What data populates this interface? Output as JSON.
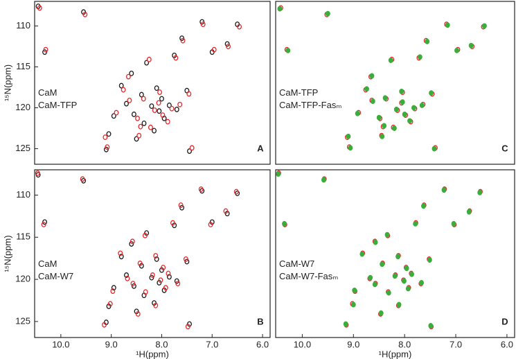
{
  "chart_data": [
    {
      "type": "scatter",
      "label": "A",
      "xlim": [
        10.52,
        5.85
      ],
      "ylim": [
        107.0,
        126.9
      ],
      "yticks": [
        110,
        115,
        120,
        125
      ],
      "ylabel": "¹⁵N(ppm)",
      "series": [
        {
          "name": "CaM",
          "color": "#1a1a1a",
          "x": [
            10.45,
            10.32,
            9.55,
            9.05,
            9.1,
            8.95,
            8.8,
            8.7,
            8.6,
            8.55,
            8.5,
            8.4,
            8.35,
            8.3,
            8.2,
            8.15,
            8.1,
            8.05,
            8.0,
            7.95,
            7.85,
            7.75,
            7.7,
            7.6,
            7.5,
            7.2,
            7.0,
            6.7,
            6.5,
            7.45
          ],
          "y": [
            107.6,
            113.2,
            108.3,
            123.2,
            125.1,
            121.0,
            117.3,
            119.5,
            115.8,
            120.8,
            123.8,
            118.4,
            121.9,
            114.5,
            119.8,
            122.8,
            117.6,
            120.4,
            118.9,
            121.3,
            119.7,
            113.6,
            120.2,
            111.5,
            117.9,
            109.5,
            113.2,
            112.2,
            109.8,
            125.3
          ]
        },
        {
          "name": "CaM-TFP",
          "color": "#e8262a",
          "x": [
            10.42,
            10.3,
            9.52,
            9.12,
            9.08,
            8.9,
            8.76,
            8.64,
            8.66,
            8.48,
            8.45,
            8.36,
            8.42,
            8.25,
            8.14,
            8.22,
            8.04,
            7.98,
            8.06,
            7.88,
            7.8,
            7.72,
            7.64,
            7.58,
            7.46,
            7.18,
            6.96,
            6.68,
            6.46,
            7.4
          ],
          "y": [
            107.8,
            112.9,
            108.6,
            123.6,
            124.8,
            120.6,
            117.8,
            119.1,
            116.2,
            121.3,
            123.4,
            118.9,
            122.3,
            114.1,
            120.3,
            122.4,
            118.1,
            120.9,
            119.4,
            121.7,
            120.1,
            113.9,
            119.6,
            111.8,
            118.3,
            109.8,
            112.9,
            112.5,
            110.1,
            124.9
          ]
        }
      ]
    },
    {
      "type": "scatter",
      "label": "B",
      "xlim": [
        10.52,
        5.85
      ],
      "ylim": [
        107.0,
        126.9
      ],
      "yticks": [
        110,
        115,
        120,
        125
      ],
      "ylabel": "¹⁵N(ppm)",
      "xticks": [
        {
          "value": 10,
          "label": "10.0"
        },
        {
          "value": 9,
          "label": "9.0"
        },
        {
          "value": 8,
          "label": "8.0"
        },
        {
          "value": 7,
          "label": "7.0"
        },
        {
          "value": 6,
          "label": "6.0"
        }
      ],
      "xlabel": "¹H(ppm)",
      "series": [
        {
          "name": "CaM",
          "color": "#1a1a1a",
          "x": [
            10.45,
            10.32,
            9.55,
            9.05,
            9.1,
            8.95,
            8.8,
            8.7,
            8.6,
            8.55,
            8.5,
            8.4,
            8.35,
            8.3,
            8.2,
            8.15,
            8.1,
            8.05,
            8.0,
            7.95,
            7.85,
            7.75,
            7.7,
            7.6,
            7.5,
            7.2,
            7.0,
            6.7,
            6.5,
            7.45
          ],
          "y": [
            107.6,
            113.2,
            108.3,
            123.2,
            125.1,
            121.0,
            117.3,
            119.5,
            115.8,
            120.8,
            123.8,
            118.4,
            121.9,
            114.5,
            119.8,
            122.8,
            117.6,
            120.4,
            118.9,
            121.3,
            119.7,
            113.6,
            120.2,
            111.5,
            117.9,
            109.5,
            113.2,
            112.2,
            109.8,
            125.3
          ]
        },
        {
          "name": "CaM-W7",
          "color": "#e8262a",
          "x": [
            10.46,
            10.34,
            9.57,
            9.02,
            9.14,
            8.97,
            8.82,
            8.68,
            8.58,
            8.57,
            8.47,
            8.43,
            8.32,
            8.33,
            8.18,
            8.12,
            8.12,
            8.02,
            7.97,
            7.92,
            7.87,
            7.78,
            7.68,
            7.62,
            7.52,
            7.22,
            7.03,
            6.73,
            6.52,
            7.48
          ],
          "y": [
            107.4,
            113.5,
            108.1,
            122.9,
            125.4,
            121.4,
            116.9,
            119.9,
            115.5,
            120.5,
            124.1,
            118.1,
            121.5,
            114.8,
            119.5,
            123.1,
            117.2,
            120.1,
            118.6,
            121.0,
            119.3,
            113.3,
            120.5,
            111.2,
            117.6,
            109.3,
            113.5,
            111.9,
            109.6,
            125.6
          ]
        }
      ]
    },
    {
      "type": "scatter",
      "label": "C",
      "xlim": [
        10.52,
        5.85
      ],
      "ylim": [
        107.0,
        126.9
      ],
      "series": [
        {
          "name": "CaM-TFP",
          "color": "#e8262a",
          "x": [
            10.42,
            10.3,
            9.52,
            9.12,
            9.08,
            8.9,
            8.76,
            8.64,
            8.66,
            8.48,
            8.45,
            8.36,
            8.42,
            8.25,
            8.14,
            8.22,
            8.04,
            7.98,
            8.06,
            7.88,
            7.8,
            7.72,
            7.64,
            7.58,
            7.46,
            7.18,
            6.96,
            6.68,
            6.46,
            7.4
          ],
          "y": [
            107.8,
            112.9,
            108.6,
            123.6,
            124.8,
            120.6,
            117.8,
            119.1,
            116.2,
            121.3,
            123.4,
            118.9,
            122.3,
            114.1,
            120.3,
            122.4,
            118.1,
            120.9,
            119.4,
            121.7,
            120.1,
            113.9,
            119.6,
            111.8,
            118.3,
            109.8,
            112.9,
            112.5,
            110.1,
            124.9
          ]
        },
        {
          "name": "CaM-TFP-Fasₘ",
          "color": "#3aad3a",
          "x": [
            10.44,
            10.28,
            9.5,
            9.1,
            9.06,
            8.92,
            8.74,
            8.62,
            8.64,
            8.5,
            8.44,
            8.38,
            8.4,
            8.27,
            8.16,
            8.2,
            8.06,
            8.0,
            8.04,
            7.9,
            7.82,
            7.7,
            7.66,
            7.56,
            7.48,
            7.16,
            6.98,
            6.7,
            6.44,
            7.42
          ],
          "y": [
            107.9,
            113.0,
            108.5,
            123.5,
            124.9,
            120.7,
            117.7,
            119.2,
            116.1,
            121.2,
            123.5,
            118.8,
            122.2,
            114.2,
            120.2,
            122.5,
            118.0,
            120.8,
            119.3,
            121.6,
            120.0,
            113.8,
            119.7,
            111.9,
            118.2,
            109.9,
            113.0,
            112.4,
            110.0,
            125.0
          ]
        }
      ]
    },
    {
      "type": "scatter",
      "label": "D",
      "xlim": [
        10.52,
        5.85
      ],
      "ylim": [
        107.0,
        126.9
      ],
      "xticks": [
        {
          "value": 10,
          "label": "10.0"
        },
        {
          "value": 9,
          "label": "9.0"
        },
        {
          "value": 8,
          "label": "8.0"
        },
        {
          "value": 7,
          "label": "7.0"
        },
        {
          "value": 6,
          "label": "6.0"
        }
      ],
      "xlabel": "¹H(ppm)",
      "series": [
        {
          "name": "CaM-W7",
          "color": "#e8262a",
          "x": [
            10.46,
            10.34,
            9.57,
            9.02,
            9.14,
            8.97,
            8.82,
            8.68,
            8.58,
            8.57,
            8.47,
            8.43,
            8.32,
            8.33,
            8.18,
            8.12,
            8.12,
            8.02,
            7.97,
            7.92,
            7.87,
            7.78,
            7.68,
            7.62,
            7.52,
            7.22,
            7.03,
            6.73,
            6.52,
            7.48
          ],
          "y": [
            107.4,
            113.5,
            108.1,
            122.9,
            125.4,
            121.4,
            116.9,
            119.9,
            115.5,
            120.5,
            124.1,
            118.1,
            121.5,
            114.8,
            119.5,
            123.1,
            117.2,
            120.1,
            118.6,
            121.0,
            119.3,
            113.3,
            120.5,
            111.2,
            117.6,
            109.3,
            113.5,
            111.9,
            109.6,
            125.6
          ]
        },
        {
          "name": "CaM-W7-Fasₘ",
          "color": "#3aad3a",
          "x": [
            10.47,
            10.35,
            9.58,
            9.0,
            9.15,
            8.98,
            8.83,
            8.67,
            8.57,
            8.58,
            8.46,
            8.44,
            8.31,
            8.34,
            8.19,
            8.11,
            8.13,
            8.01,
            7.96,
            7.93,
            7.86,
            7.79,
            7.67,
            7.63,
            7.51,
            7.23,
            7.04,
            6.74,
            6.53,
            7.49
          ],
          "y": [
            107.5,
            113.4,
            108.2,
            123.0,
            125.3,
            121.3,
            117.0,
            119.8,
            115.6,
            120.6,
            124.0,
            118.2,
            121.6,
            114.7,
            119.6,
            123.0,
            117.3,
            120.2,
            118.7,
            121.1,
            119.4,
            113.4,
            120.4,
            111.3,
            117.7,
            109.4,
            113.4,
            112.0,
            109.7,
            125.5
          ]
        }
      ]
    }
  ]
}
